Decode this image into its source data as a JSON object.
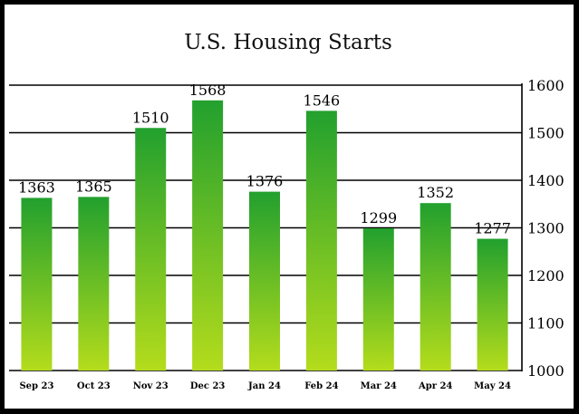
{
  "chart_data": {
    "type": "bar",
    "title": "U.S. Housing Starts",
    "categories": [
      "Sep 23",
      "Oct 23",
      "Nov 23",
      "Dec 23",
      "Jan 24",
      "Feb 24",
      "Mar 24",
      "Apr 24",
      "May 24"
    ],
    "values": [
      1363,
      1365,
      1510,
      1568,
      1376,
      1546,
      1299,
      1352,
      1277
    ],
    "data_labels": [
      "1363",
      "1365",
      "1510",
      "1568",
      "1376",
      "1546",
      "1299",
      "1352",
      "1277"
    ],
    "y_ticks": [
      "1000",
      "1100",
      "1200",
      "1300",
      "1400",
      "1500",
      "1600"
    ],
    "ylim": [
      1000,
      1600
    ],
    "y_axis_side": "right",
    "grid": true,
    "legend": "none",
    "colors": {
      "bar_top": "#22a02e",
      "bar_bottom": "#b4dc1c",
      "gridline": "#000000",
      "frame": "#000000",
      "background": "#ffffff"
    }
  }
}
